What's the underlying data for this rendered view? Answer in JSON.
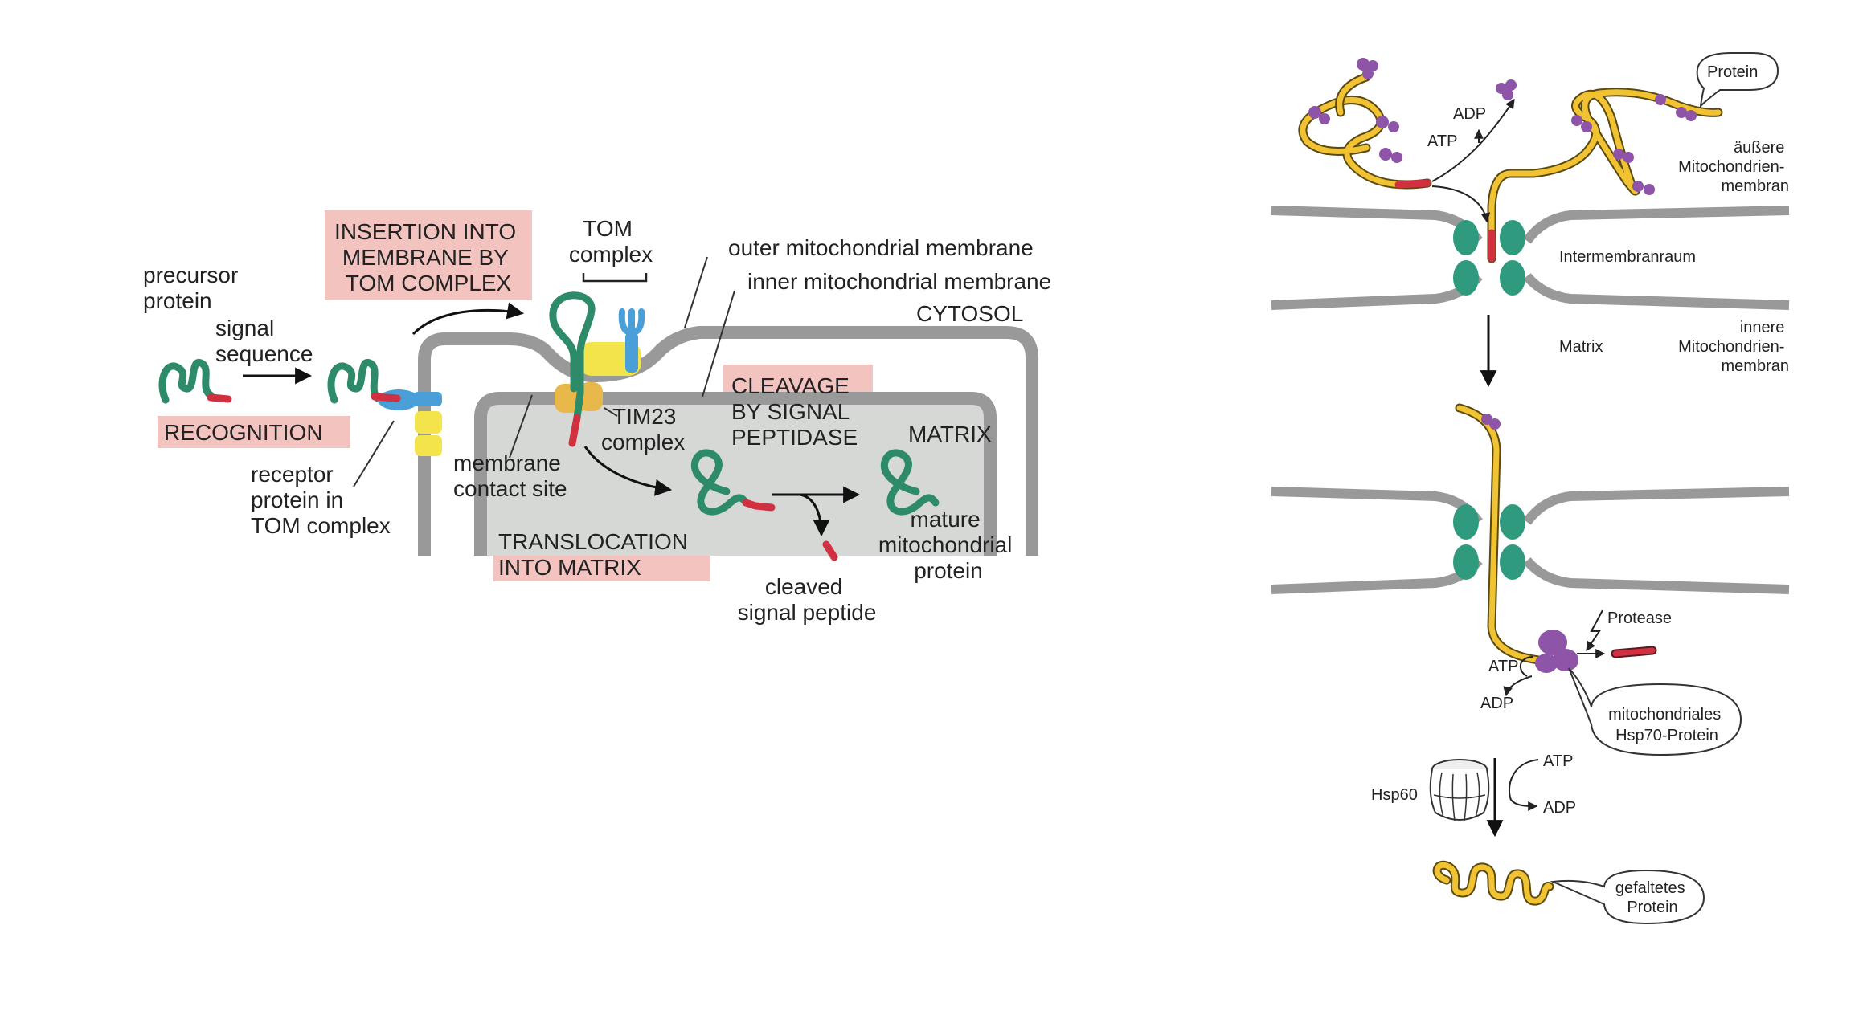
{
  "left_panel": {
    "labels": {
      "precursor_protein": [
        "precursor",
        "protein"
      ],
      "signal_sequence": [
        "signal",
        "sequence"
      ],
      "recognition": "RECOGNITION",
      "receptor_protein": [
        "receptor",
        "protein in",
        "TOM complex"
      ],
      "insertion": [
        "INSERTION INTO",
        "MEMBRANE BY",
        "TOM COMPLEX"
      ],
      "tom_complex": [
        "TOM",
        "complex"
      ],
      "outer_membrane": "outer mitochondrial membrane",
      "inner_membrane": "inner mitochondrial membrane",
      "cytosol": "CYTOSOL",
      "cleavage": [
        "CLEAVAGE",
        "BY SIGNAL",
        "PEPTIDASE"
      ],
      "matrix": "MATRIX",
      "tim23_complex": [
        "TIM23",
        "complex"
      ],
      "membrane_contact_site": [
        "membrane",
        "contact site"
      ],
      "translocation": [
        "TRANSLOCATION",
        "INTO MATRIX"
      ],
      "cleaved_signal_peptide": [
        "cleaved",
        "signal peptide"
      ],
      "mature_protein": [
        "mature",
        "mitochondrial",
        "protein"
      ]
    }
  },
  "right_panel": {
    "labels": {
      "protein": "Protein",
      "adp_top": "ADP",
      "atp_top": "ATP",
      "outer_membrane": [
        "äußere",
        "Mitochondrien-",
        "membran"
      ],
      "intermembrane_space": "Intermembranraum",
      "matrix": "Matrix",
      "inner_membrane": [
        "innere",
        "Mitochondrien-",
        "membran"
      ],
      "protease": "Protease",
      "atp_mid": "ATP",
      "adp_mid": "ADP",
      "hsp70": [
        "mitochondriales",
        "Hsp70-Protein"
      ],
      "hsp60": "Hsp60",
      "atp_bottom": "ATP",
      "adp_bottom": "ADP",
      "folded_protein": [
        "gefaltetes",
        "Protein"
      ]
    }
  },
  "colors": {
    "protein_green": "#2e8b6a",
    "signal_red": "#d03040",
    "receptor_blue": "#4a9fd8",
    "tom_yellow": "#f2e44a",
    "tim_orange": "#e8b84a",
    "membrane_gray": "#999999",
    "matrix_fill": "#d6d8d6",
    "highlight_pink": "#f3c3c0",
    "pore_teal": "#2f9a7e",
    "chain_yellow": "#f1c232",
    "hsp70_purple": "#8e54a8"
  }
}
